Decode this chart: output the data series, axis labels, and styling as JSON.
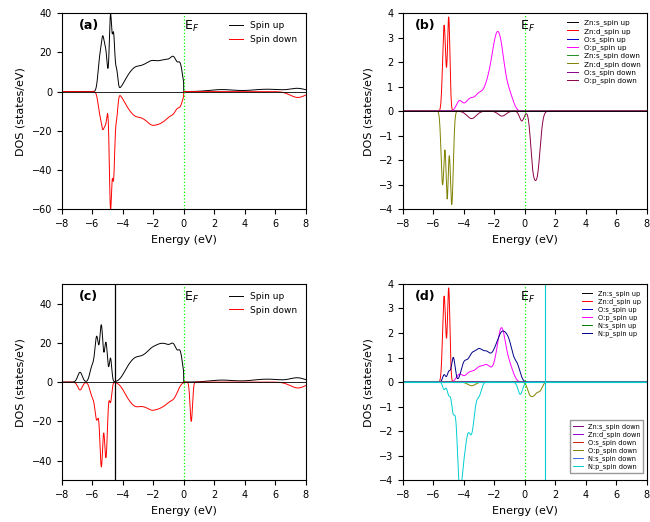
{
  "xlim": [
    -8,
    8
  ],
  "ylim_a": [
    -60,
    40
  ],
  "ylim_c": [
    -50,
    50
  ],
  "ylim_bd": [
    -4,
    4
  ],
  "xlabel": "Energy (eV)",
  "ylabel": "DOS (states/eV)",
  "ef_label": "E$_F$",
  "panel_labels": [
    "(a)",
    "(b)",
    "(c)",
    "(d)"
  ],
  "legend_a": [
    "Spin up",
    "Spin down"
  ],
  "legend_b_up": [
    "Zn:s_spin up",
    "Zn:d_spin up",
    "O:s_spin up",
    "O:p_spin up"
  ],
  "legend_b_down": [
    "Zn:s_spin down",
    "Zn:d_spin down",
    "O:s_spin down",
    "O:p_spin down"
  ],
  "legend_d_up": [
    "Zn:s_spin up",
    "Zn:d_spin up",
    "O:s_spin up",
    "O:p_spin up",
    "N:s_spin up",
    "N:p_spin up"
  ],
  "legend_d_down": [
    "Zn:s_spin down",
    "Zn:d_spin down",
    "O:s_spin down",
    "O:p_spin down",
    "N:s_spin down",
    "N:p_spin down"
  ],
  "colors_b_up": [
    "#000000",
    "#ff0000",
    "#0000cd",
    "#ff00ff"
  ],
  "colors_b_down": [
    "#228b22",
    "#808000",
    "#8b008b",
    "#8b0045"
  ],
  "colors_d_up": [
    "#000000",
    "#ff0000",
    "#0000cd",
    "#ff00ff",
    "#008000",
    "#00008b"
  ],
  "colors_d_down": [
    "#800080",
    "#9400d3",
    "#cc2200",
    "#808000",
    "#4169e1",
    "#00ced1"
  ],
  "background": "#ffffff",
  "tick_color": "#000000",
  "spine_color": "#000000"
}
